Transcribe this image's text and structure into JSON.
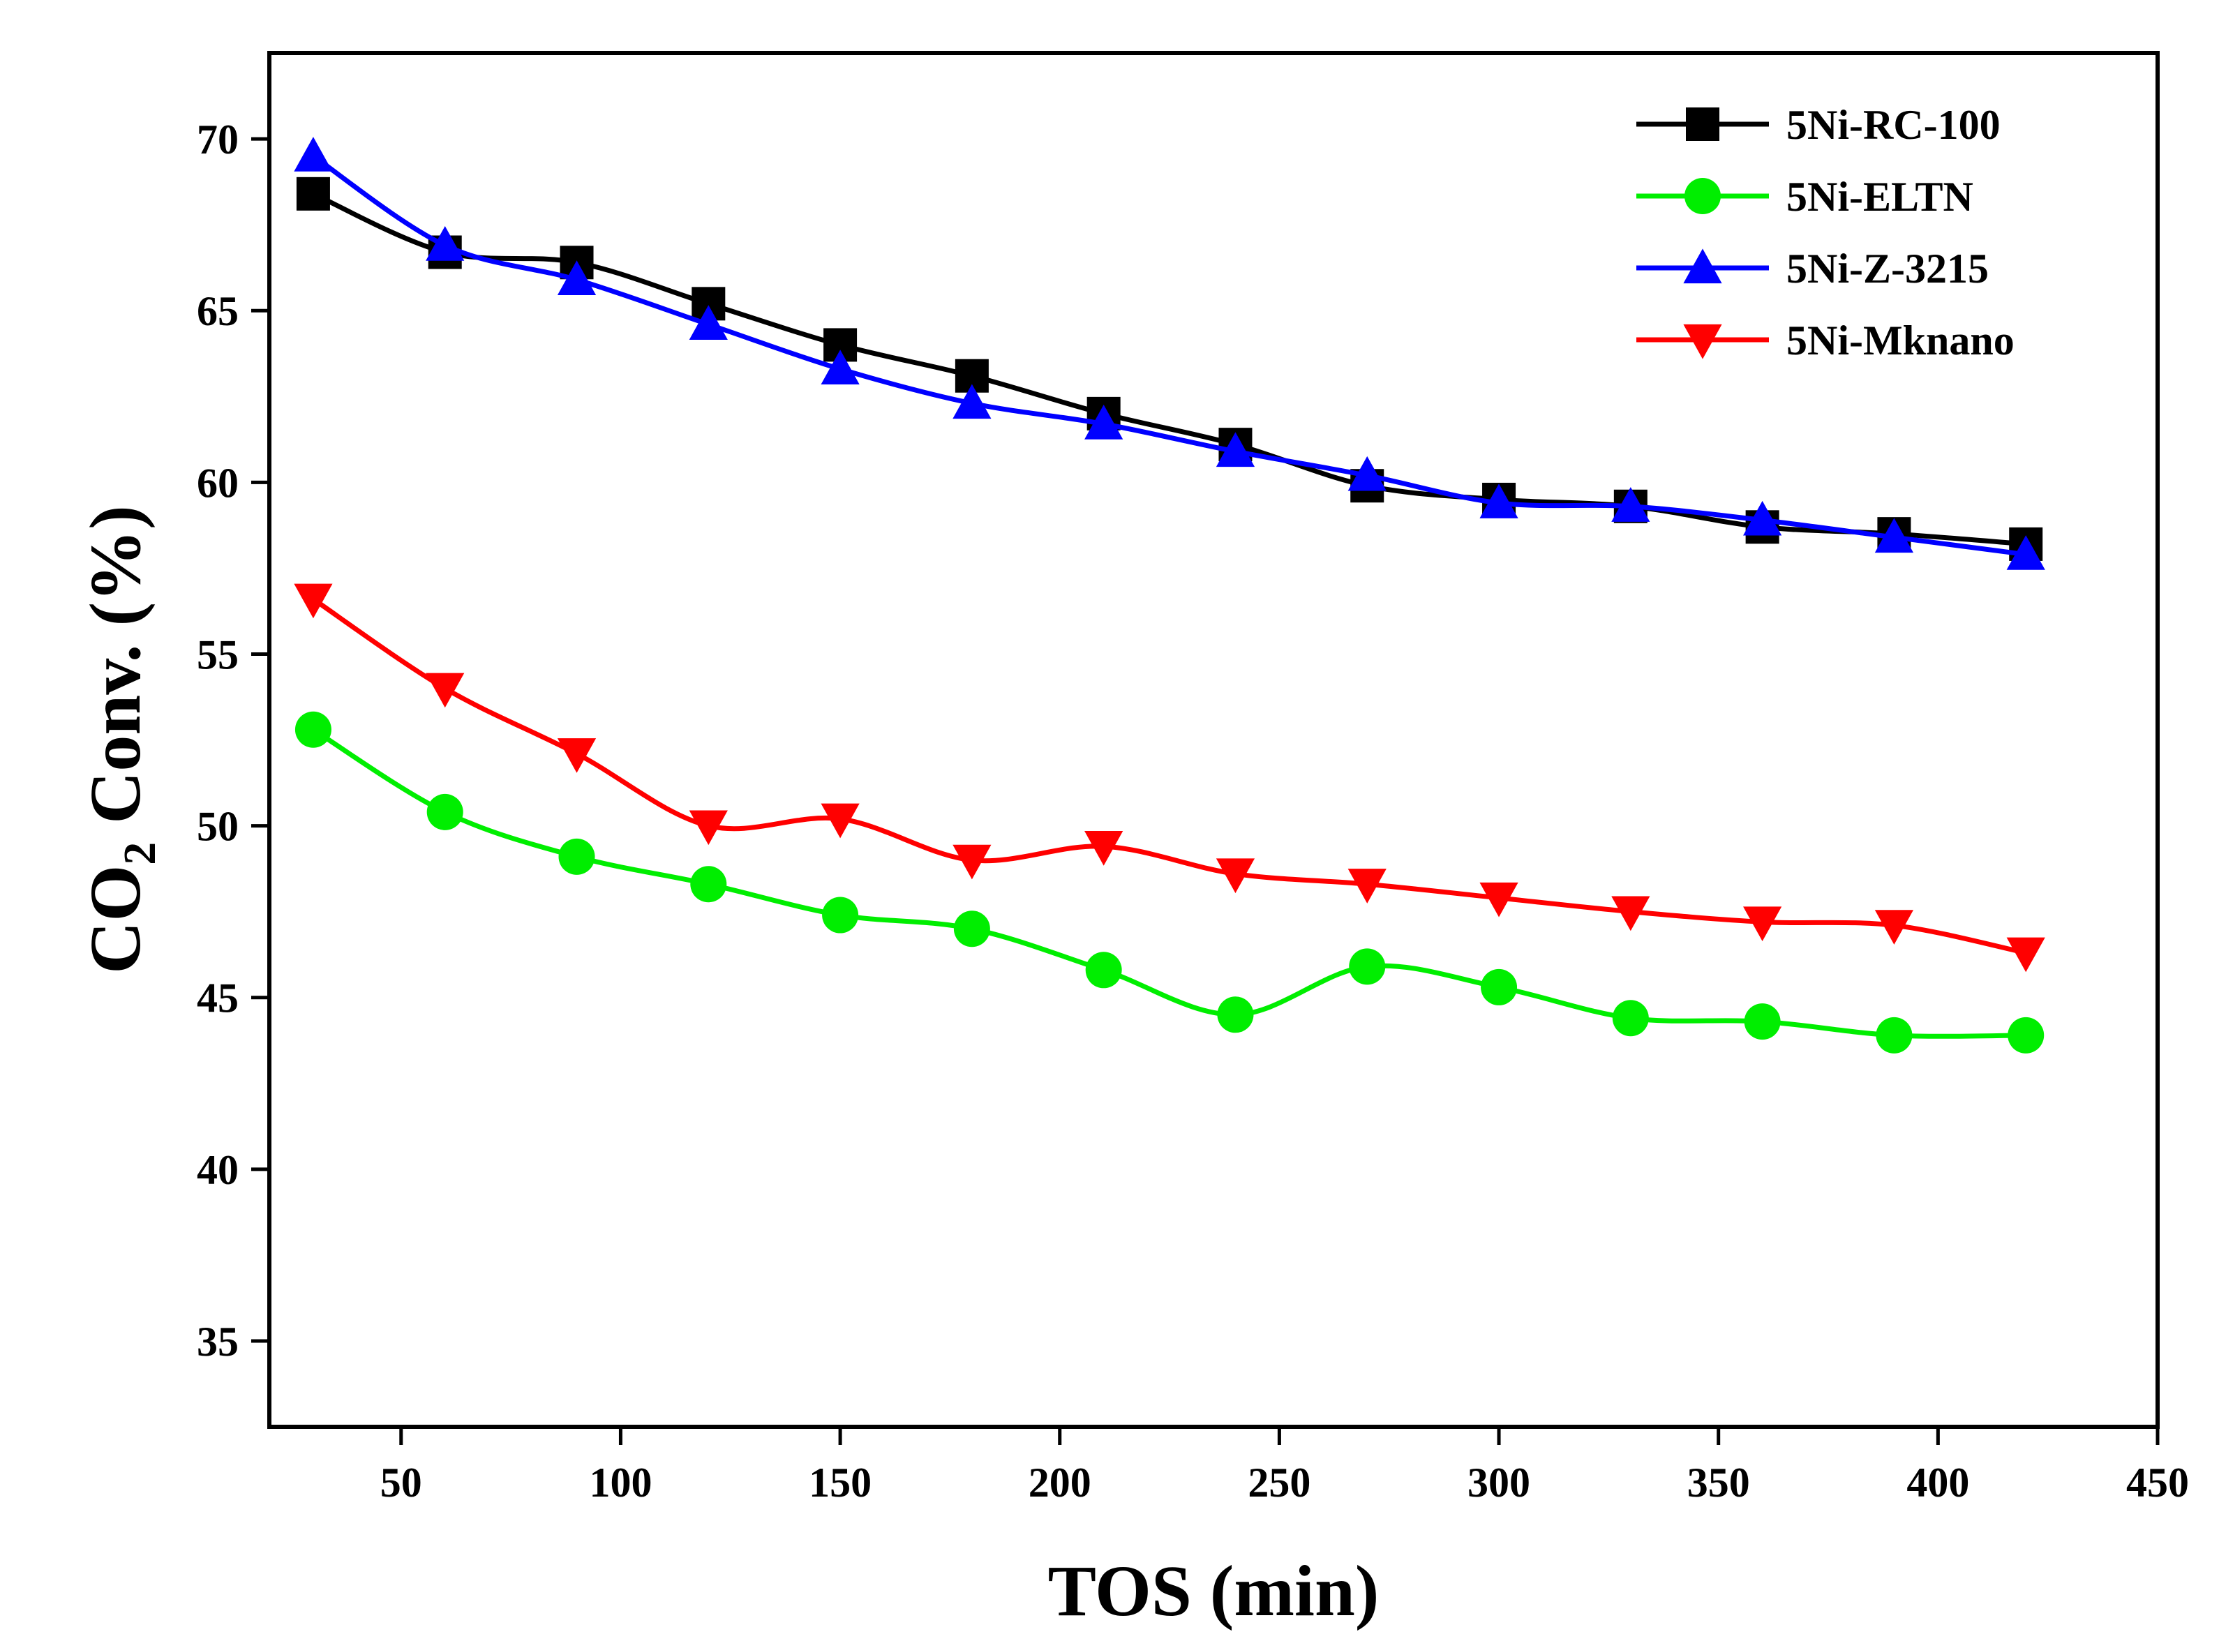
{
  "chart_data": {
    "type": "line",
    "title": "",
    "xlabel": "TOS (min)",
    "ylabel_main": "CO",
    "ylabel_sub": "2",
    "ylabel_rest": " Conv. (%)",
    "xlim": [
      20,
      450
    ],
    "ylim": [
      32.5,
      72.5
    ],
    "xticks": [
      50,
      100,
      150,
      200,
      250,
      300,
      350,
      400,
      450
    ],
    "yticks": [
      35,
      40,
      45,
      50,
      55,
      60,
      65,
      70
    ],
    "legend_position": "top-right",
    "x": [
      30,
      60,
      90,
      120,
      150,
      180,
      210,
      240,
      270,
      300,
      330,
      360,
      390,
      420
    ],
    "series": [
      {
        "name": "5Ni-RC-100",
        "color": "#000000",
        "marker": "square",
        "values": [
          68.4,
          66.7,
          66.4,
          65.2,
          64.0,
          63.1,
          62.0,
          61.1,
          59.9,
          59.5,
          59.3,
          58.7,
          58.5,
          58.2
        ]
      },
      {
        "name": "5Ni-ELTN",
        "color": "#00ee00",
        "marker": "circle",
        "values": [
          52.8,
          50.4,
          49.1,
          48.3,
          47.4,
          47.0,
          45.8,
          44.5,
          45.9,
          45.3,
          44.4,
          44.3,
          43.9,
          43.9
        ]
      },
      {
        "name": "5Ni-Z-3215",
        "color": "#0000ff",
        "marker": "triangle-up",
        "values": [
          69.5,
          66.9,
          65.9,
          64.6,
          63.3,
          62.3,
          61.7,
          60.9,
          60.2,
          59.4,
          59.3,
          58.9,
          58.4,
          57.9
        ]
      },
      {
        "name": "5Ni-Mknano",
        "color": "#ff0000",
        "marker": "triangle-down",
        "values": [
          56.6,
          54.0,
          52.1,
          50.0,
          50.2,
          49.0,
          49.4,
          48.6,
          48.3,
          47.9,
          47.5,
          47.2,
          47.1,
          46.3
        ]
      }
    ]
  }
}
